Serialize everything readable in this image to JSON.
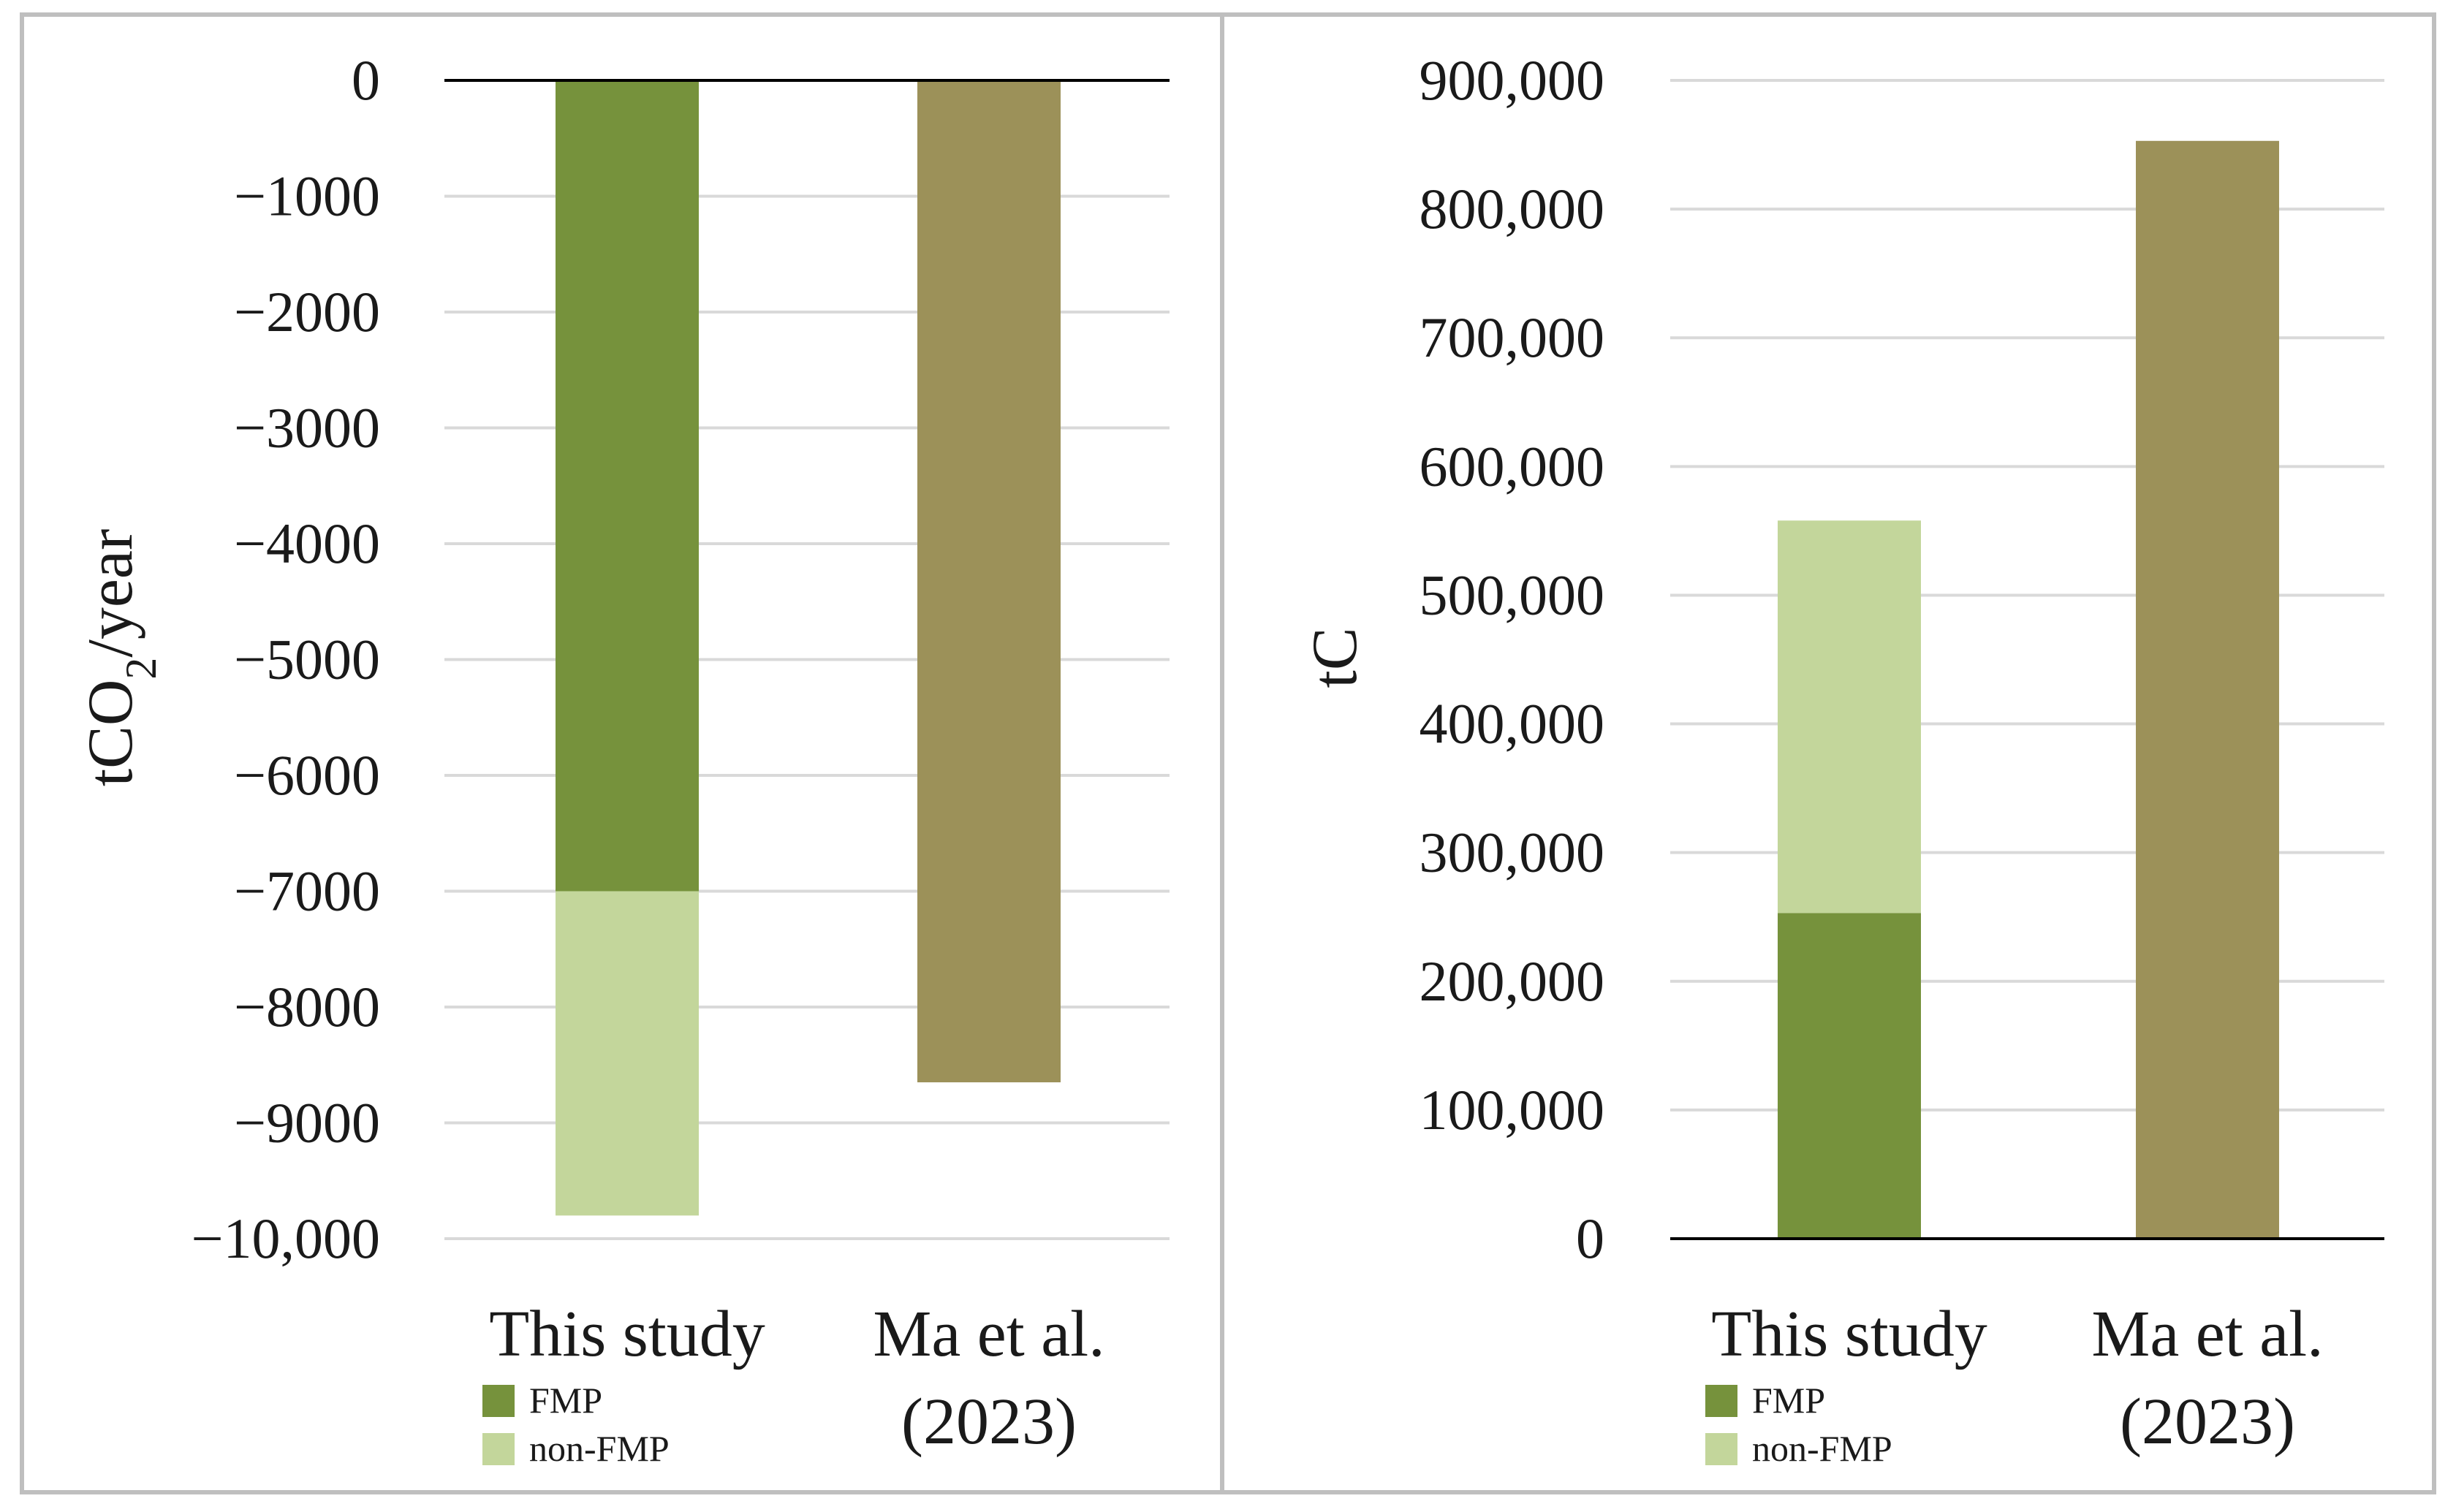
{
  "colors": {
    "fmp": "#76923c",
    "non_fmp": "#c3d69b",
    "ma": "#9c9159",
    "grid": "#d9d9d9",
    "axis": "#000000",
    "frame": "#bfbfbf"
  },
  "chart_data": [
    {
      "type": "bar",
      "stacked": true,
      "title": "",
      "ylabel": "tCO2/year",
      "ylabel_main": "tCO",
      "ylabel_sub": "2",
      "ylabel_tail": "/year",
      "ylim": [
        -10000,
        0
      ],
      "yticks": [
        0,
        -1000,
        -2000,
        -3000,
        -4000,
        -5000,
        -6000,
        -7000,
        -8000,
        -9000,
        -10000
      ],
      "ytick_labels": [
        "0",
        "−1000",
        "−2000",
        "−3000",
        "−4000",
        "−5000",
        "−6000",
        "−7000",
        "−8000",
        "−9000",
        "−10,000"
      ],
      "categories": [
        "This study",
        "Ma et al. (2023)"
      ],
      "category_lines": [
        [
          "This study"
        ],
        [
          "Ma et al.",
          "(2023)"
        ]
      ],
      "series": [
        {
          "name": "FMP",
          "color_key": "fmp",
          "values": [
            -7000,
            null
          ]
        },
        {
          "name": "non-FMP",
          "color_key": "non_fmp",
          "values": [
            -2800,
            null
          ]
        },
        {
          "name": "Ma et al. (2023)",
          "color_key": "ma",
          "values": [
            null,
            -8650
          ]
        }
      ],
      "legend": [
        {
          "label": "FMP",
          "color_key": "fmp"
        },
        {
          "label": "non-FMP",
          "color_key": "non_fmp"
        }
      ],
      "legend_position": "bottom-left"
    },
    {
      "type": "bar",
      "stacked": true,
      "title": "",
      "ylabel": "tC",
      "ylabel_main": "tC",
      "ylabel_sub": "",
      "ylabel_tail": "",
      "ylim": [
        0,
        900000
      ],
      "yticks": [
        900000,
        800000,
        700000,
        600000,
        500000,
        400000,
        300000,
        200000,
        100000,
        0
      ],
      "ytick_labels": [
        "900,000",
        "800,000",
        "700,000",
        "600,000",
        "500,000",
        "400,000",
        "300,000",
        "200,000",
        "100,000",
        "0"
      ],
      "categories": [
        "This study",
        "Ma et al. (2023)"
      ],
      "category_lines": [
        [
          "This study"
        ],
        [
          "Ma et al.",
          "(2023)"
        ]
      ],
      "series": [
        {
          "name": "FMP",
          "color_key": "fmp",
          "values": [
            253000,
            null
          ]
        },
        {
          "name": "non-FMP",
          "color_key": "non_fmp",
          "values": [
            305000,
            null
          ]
        },
        {
          "name": "Ma et al. (2023)",
          "color_key": "ma",
          "values": [
            null,
            853000
          ]
        }
      ],
      "legend": [
        {
          "label": "FMP",
          "color_key": "fmp"
        },
        {
          "label": "non-FMP",
          "color_key": "non_fmp"
        }
      ],
      "legend_position": "bottom-left"
    }
  ]
}
